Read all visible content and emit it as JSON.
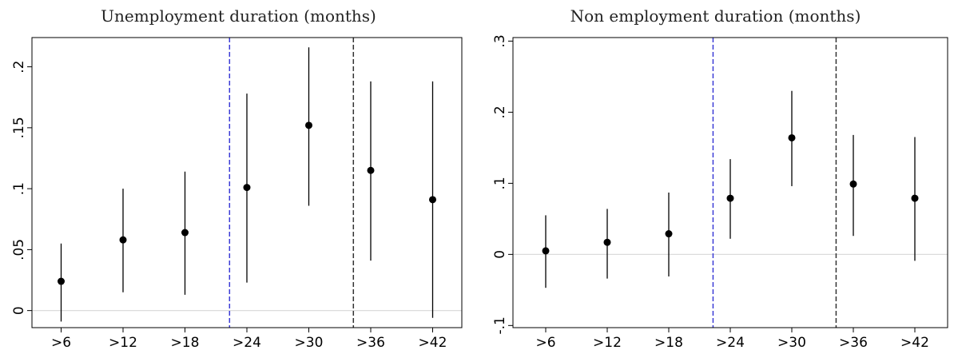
{
  "chart_data": [
    {
      "type": "scatter",
      "title": "Unemployment duration (months)",
      "categories": [
        ">6",
        ">12",
        ">18",
        ">24",
        ">30",
        ">36",
        ">42"
      ],
      "values": [
        0.024,
        0.058,
        0.064,
        0.101,
        0.152,
        0.115,
        0.091
      ],
      "ci_lower": [
        -0.009,
        0.015,
        0.013,
        0.023,
        0.086,
        0.041,
        -0.006
      ],
      "ci_upper": [
        0.055,
        0.1,
        0.114,
        0.178,
        0.216,
        0.188,
        0.188
      ],
      "yticks": [
        0,
        0.05,
        0.1,
        0.15,
        0.2
      ],
      "ytick_labels": [
        "0",
        ".05",
        ".1",
        ".15",
        ".2"
      ],
      "ylim": [
        -0.014,
        0.224
      ],
      "reference_lines": [
        {
          "x_between": [
            ">18",
            ">24"
          ],
          "color": "#3b3bd6"
        },
        {
          "x_between": [
            ">30",
            ">36"
          ],
          "color": "#333333"
        }
      ],
      "zero_line": true,
      "grid": false
    },
    {
      "type": "scatter",
      "title": "Non employment duration (months)",
      "categories": [
        ">6",
        ">12",
        ">18",
        ">24",
        ">30",
        ">36",
        ">42"
      ],
      "values": [
        0.005,
        0.017,
        0.029,
        0.079,
        0.164,
        0.099,
        0.079
      ],
      "ci_lower": [
        -0.047,
        -0.034,
        -0.031,
        0.022,
        0.096,
        0.026,
        -0.009
      ],
      "ci_upper": [
        0.055,
        0.064,
        0.087,
        0.134,
        0.23,
        0.168,
        0.165
      ],
      "yticks": [
        -0.1,
        0,
        0.1,
        0.2,
        0.3
      ],
      "ytick_labels": [
        "-.1",
        "0",
        ".1",
        ".2",
        ".3"
      ],
      "ylim": [
        -0.103,
        0.305
      ],
      "reference_lines": [
        {
          "x_between": [
            ">18",
            ">24"
          ],
          "color": "#3b3bd6"
        },
        {
          "x_between": [
            ">30",
            ">36"
          ],
          "color": "#333333"
        }
      ],
      "zero_line": true,
      "grid": false
    }
  ]
}
